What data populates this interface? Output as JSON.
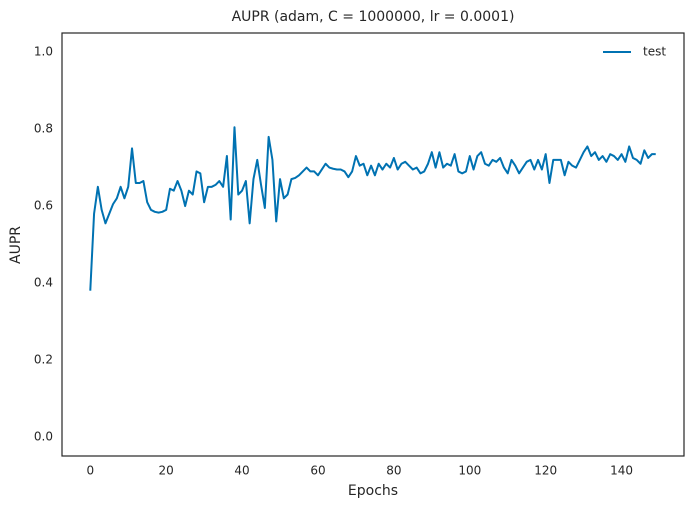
{
  "chart_data": {
    "type": "line",
    "title": "AUPR (adam, C = 1000000, lr = 0.0001)",
    "x_label": "Epochs",
    "y_label": "AUPR",
    "x": [
      0,
      1,
      2,
      3,
      4,
      5,
      6,
      7,
      8,
      9,
      10,
      11,
      12,
      13,
      14,
      15,
      16,
      17,
      18,
      19,
      20,
      21,
      22,
      23,
      24,
      25,
      26,
      27,
      28,
      29,
      30,
      31,
      32,
      33,
      34,
      35,
      36,
      37,
      38,
      39,
      40,
      41,
      42,
      43,
      44,
      45,
      46,
      47,
      48,
      49,
      50,
      51,
      52,
      53,
      54,
      55,
      56,
      57,
      58,
      59,
      60,
      61,
      62,
      63,
      64,
      65,
      66,
      67,
      68,
      69,
      70,
      71,
      72,
      73,
      74,
      75,
      76,
      77,
      78,
      79,
      80,
      81,
      82,
      83,
      84,
      85,
      86,
      87,
      88,
      89,
      90,
      91,
      92,
      93,
      94,
      95,
      96,
      97,
      98,
      99,
      100,
      101,
      102,
      103,
      104,
      105,
      106,
      107,
      108,
      109,
      110,
      111,
      112,
      113,
      114,
      115,
      116,
      117,
      118,
      119,
      120,
      121,
      122,
      123,
      124,
      125,
      126,
      127,
      128,
      129,
      130,
      131,
      132,
      133,
      134,
      135,
      136,
      137,
      138,
      139,
      140,
      141,
      142,
      143,
      144,
      145,
      146,
      147,
      148,
      149
    ],
    "series": [
      {
        "name": "test",
        "color": "#0072b2",
        "values": [
          0.38,
          0.58,
          0.65,
          0.59,
          0.555,
          0.58,
          0.605,
          0.62,
          0.65,
          0.62,
          0.65,
          0.75,
          0.66,
          0.66,
          0.665,
          0.61,
          0.59,
          0.585,
          0.583,
          0.585,
          0.59,
          0.645,
          0.64,
          0.665,
          0.64,
          0.6,
          0.64,
          0.63,
          0.69,
          0.685,
          0.61,
          0.65,
          0.65,
          0.655,
          0.665,
          0.65,
          0.73,
          0.565,
          0.805,
          0.63,
          0.64,
          0.665,
          0.555,
          0.67,
          0.72,
          0.655,
          0.595,
          0.78,
          0.72,
          0.56,
          0.67,
          0.62,
          0.63,
          0.67,
          0.673,
          0.68,
          0.69,
          0.7,
          0.69,
          0.69,
          0.68,
          0.695,
          0.71,
          0.7,
          0.697,
          0.695,
          0.695,
          0.69,
          0.675,
          0.69,
          0.73,
          0.705,
          0.71,
          0.68,
          0.705,
          0.68,
          0.71,
          0.695,
          0.71,
          0.7,
          0.725,
          0.695,
          0.71,
          0.715,
          0.705,
          0.695,
          0.7,
          0.685,
          0.69,
          0.71,
          0.74,
          0.7,
          0.74,
          0.7,
          0.71,
          0.705,
          0.735,
          0.69,
          0.685,
          0.69,
          0.73,
          0.695,
          0.73,
          0.74,
          0.71,
          0.705,
          0.72,
          0.715,
          0.725,
          0.7,
          0.685,
          0.72,
          0.705,
          0.685,
          0.7,
          0.715,
          0.72,
          0.695,
          0.72,
          0.695,
          0.735,
          0.66,
          0.72,
          0.72,
          0.72,
          0.68,
          0.715,
          0.705,
          0.7,
          0.72,
          0.74,
          0.755,
          0.73,
          0.74,
          0.72,
          0.73,
          0.715,
          0.735,
          0.73,
          0.72,
          0.735,
          0.715,
          0.755,
          0.725,
          0.72,
          0.71,
          0.745,
          0.725,
          0.735,
          0.735
        ]
      }
    ],
    "xlim": [
      -7.45,
      156.45
    ],
    "ylim": [
      -0.05,
      1.05
    ],
    "xticks": [
      0,
      20,
      40,
      60,
      80,
      100,
      120,
      140
    ],
    "yticks": [
      {
        "value": 0,
        "label": "0.0"
      },
      {
        "value": 0.2,
        "label": "0.2"
      },
      {
        "value": 0.4,
        "label": "0.4"
      },
      {
        "value": 0.6,
        "label": "0.6"
      },
      {
        "value": 0.8,
        "label": "0.8"
      },
      {
        "value": 1,
        "label": "1.0"
      }
    ],
    "legend": "upper right"
  }
}
